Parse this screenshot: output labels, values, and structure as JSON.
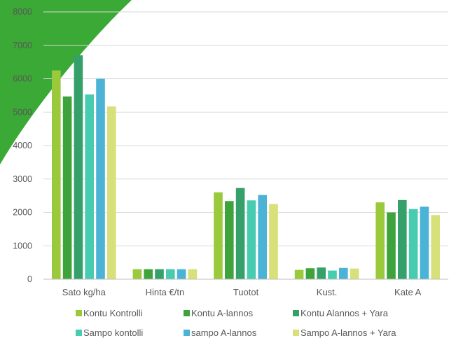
{
  "chart_data": {
    "type": "bar",
    "title": "",
    "xlabel": "",
    "ylabel": "",
    "ylim": [
      0,
      8000
    ],
    "yticks": [
      0,
      1000,
      2000,
      3000,
      4000,
      5000,
      6000,
      7000,
      8000
    ],
    "grid": true,
    "legend_position": "bottom",
    "categories": [
      "Sato kg/ha",
      "Hinta €/tn",
      "Tuotot",
      "Kust.",
      "Kate A"
    ],
    "series": [
      {
        "name": "Kontu Kontrolli",
        "color": "#9ac93c",
        "values": [
          6250,
          300,
          2600,
          280,
          2300
        ]
      },
      {
        "name": "Kontu A-lannos",
        "color": "#3fa33c",
        "values": [
          5470,
          300,
          2340,
          330,
          2000
        ]
      },
      {
        "name": "Kontu Alannos + Yara",
        "color": "#35a06a",
        "values": [
          6700,
          300,
          2730,
          350,
          2370
        ]
      },
      {
        "name": "Sampo kontolli",
        "color": "#47ccb0",
        "values": [
          5530,
          300,
          2360,
          260,
          2100
        ]
      },
      {
        "name": "sampo A-lannos",
        "color": "#4bb3d6",
        "values": [
          6000,
          300,
          2520,
          340,
          2170
        ]
      },
      {
        "name": "Sampo A-lannos + Yara",
        "color": "#d8e07a",
        "values": [
          5170,
          300,
          2250,
          320,
          1920
        ]
      }
    ]
  },
  "colors": {
    "grid": "#d9d9d9",
    "axis": "#bfbfbf",
    "text": "#595959",
    "decoration": "#3aa935"
  }
}
